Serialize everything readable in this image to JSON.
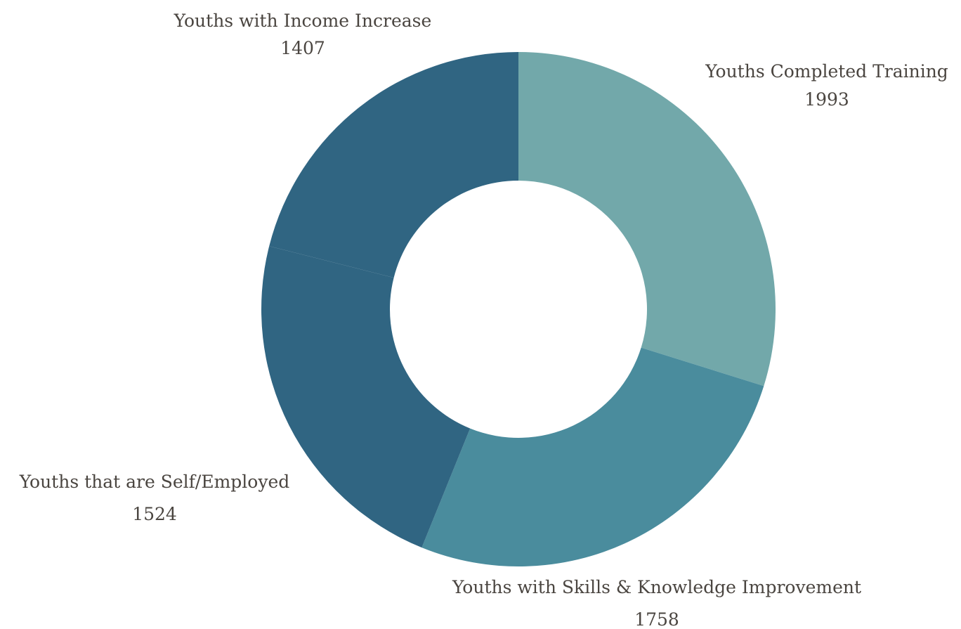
{
  "chart_data": {
    "type": "pie",
    "variant": "donut",
    "title": "",
    "slices": [
      {
        "label": "Youths Completed Training",
        "value": 1993,
        "color": "#72a8aa"
      },
      {
        "label": "Youths with Skills & Knowledge Improvement",
        "value": 1758,
        "color": "#4a8c9d"
      },
      {
        "label": "Youths that are Self/Employed",
        "value": 1524,
        "color": "#306582"
      },
      {
        "label": "Youths with Income Increase",
        "value": 1407,
        "color": "#306582"
      }
    ],
    "legend": "none",
    "labels": "outside"
  }
}
